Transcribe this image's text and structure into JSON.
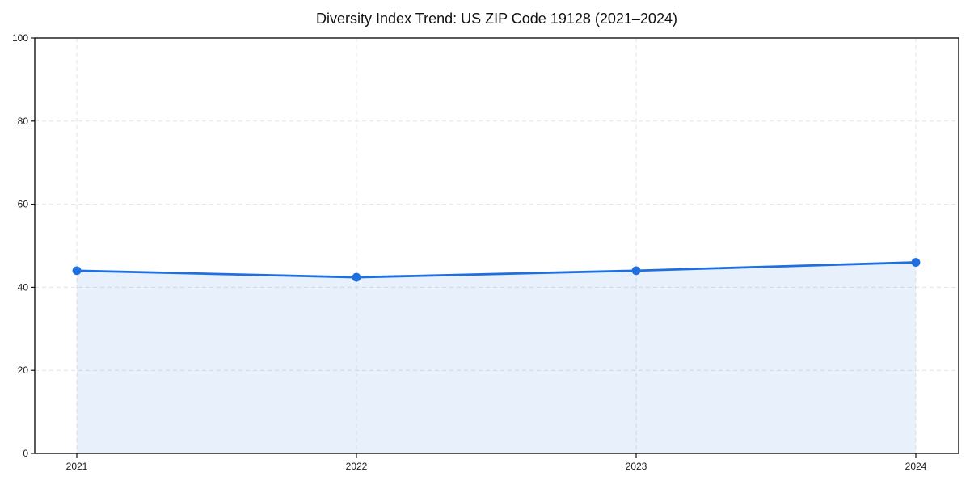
{
  "chart_data": {
    "type": "area",
    "title": "Diversity Index Trend: US ZIP Code 19128 (2021–2024)",
    "x": [
      "2021",
      "2022",
      "2023",
      "2024"
    ],
    "series": [
      {
        "name": "Diversity Index",
        "values": [
          44.0,
          42.4,
          44.0,
          46.0
        ]
      }
    ],
    "xlabel": "",
    "ylabel": "",
    "ylim": [
      0,
      100
    ],
    "yticks": [
      0,
      20,
      40,
      60,
      80,
      100
    ],
    "grid": "on-dashed-both-axes",
    "legend": "none",
    "colors": {
      "line": "#1f6fe0",
      "marker": "#1f6fe0",
      "fill": "#1f6fe0",
      "fill_opacity": 0.1,
      "grid": "#e3e3e3",
      "axis": "#000000",
      "title_text": "#111111",
      "tick_text": "#1a1a1a"
    }
  }
}
